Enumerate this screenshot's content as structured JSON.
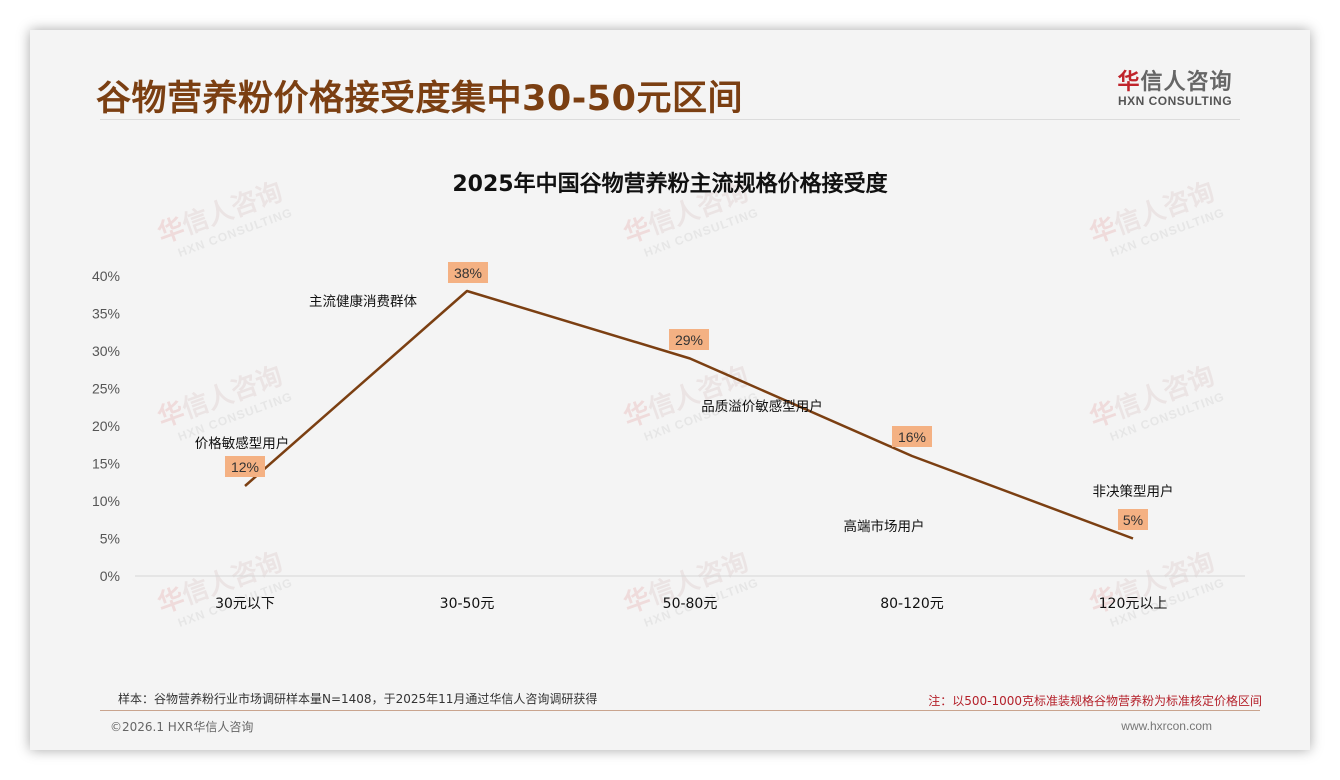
{
  "slide": {
    "title": "谷物营养粉价格接受度集中30-50元区间",
    "logo": {
      "hua": "华",
      "rest": "信人咨询",
      "en": "HXN CONSULTING"
    },
    "watermark": {
      "cn_hua": "华",
      "cn_rest": "信人咨询",
      "en": "HXN CONSULTING"
    },
    "sample_text": "样本：谷物营养粉行业市场调研样本量N=1408，于2025年11月通过华信人咨询调研获得",
    "note_text": "注：以500-1000克标准装规格谷物营养粉为标准核定价格区间",
    "copyright": "©2026.1 HXR华信人咨询",
    "website": "www.hxrcon.com"
  },
  "colors": {
    "title": "#7b3f12",
    "line": "#7b3f12",
    "label_bg": "#f4b183",
    "note": "#b4202a",
    "brand_red": "#c0242b"
  },
  "chart_data": {
    "type": "line",
    "title": "2025年中国谷物营养粉主流规格价格接受度",
    "xlabel": "",
    "ylabel": "",
    "categories": [
      "30元以下",
      "30-50元",
      "50-80元",
      "80-120元",
      "120元以上"
    ],
    "series": [
      {
        "name": "价格接受度",
        "values": [
          12,
          38,
          29,
          16,
          5
        ]
      }
    ],
    "data_labels": [
      "12%",
      "38%",
      "29%",
      "16%",
      "5%"
    ],
    "annotations": [
      "价格敏感型用户",
      "主流健康消费群体",
      "品质溢价敏感型用户",
      "高端市场用户",
      "非决策型用户"
    ],
    "yticks": [
      "0%",
      "5%",
      "10%",
      "15%",
      "20%",
      "25%",
      "30%",
      "35%",
      "40%"
    ],
    "ylim": [
      0,
      40
    ],
    "grid": false,
    "legend": "none"
  }
}
